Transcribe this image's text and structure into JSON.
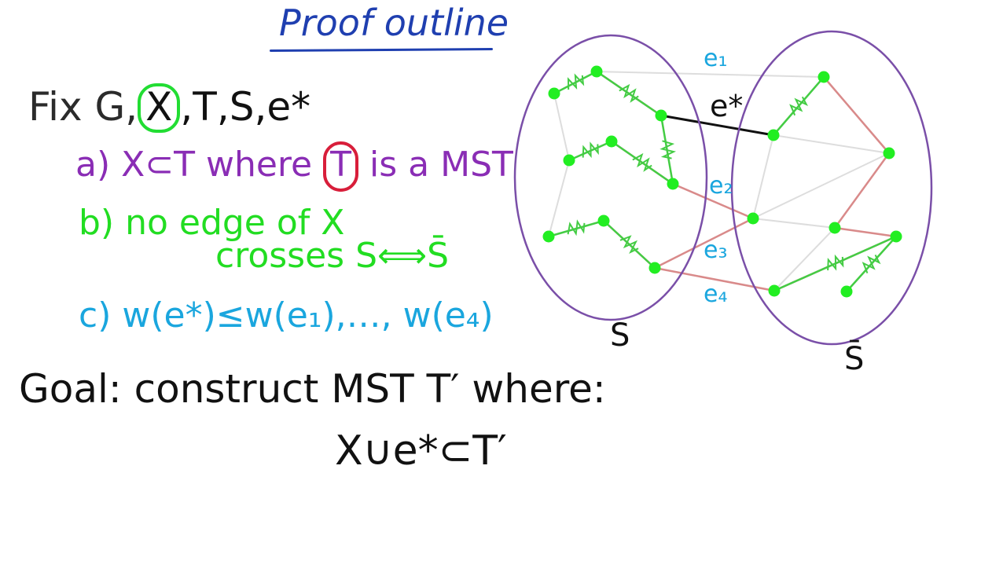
{
  "title": "Proof outline",
  "fix": {
    "prefix": "Fix G,",
    "x": "X",
    "suffix": ",T,S,e*"
  },
  "points": {
    "a_prefix": "a) X⊂T where",
    "a_t": "T",
    "a_suffix": "is a MST",
    "b_line1": "b) no edge of X",
    "b_line2": "crosses S⟺S̄",
    "c": "c) w(e*)≤w(e₁),…, w(e₄)"
  },
  "goal": {
    "line1": "Goal: construct MST T′ where:",
    "line2": "X∪e*⊂T′"
  },
  "diagram": {
    "set_s_label": "S",
    "set_sbar_label": "S̄",
    "edge_labels": [
      "e₁",
      "e*",
      "e₂",
      "e₃",
      "e₄"
    ],
    "colors": {
      "ellipse": "#7a4fa8",
      "vertex": "#22ee22",
      "x_edge": "#44cc44",
      "tree_edge": "#d98a8a",
      "other_edge": "#dddddd",
      "e_star": "#111111",
      "edge_label": "#1aa6de"
    },
    "x_edge_marks": 12
  }
}
